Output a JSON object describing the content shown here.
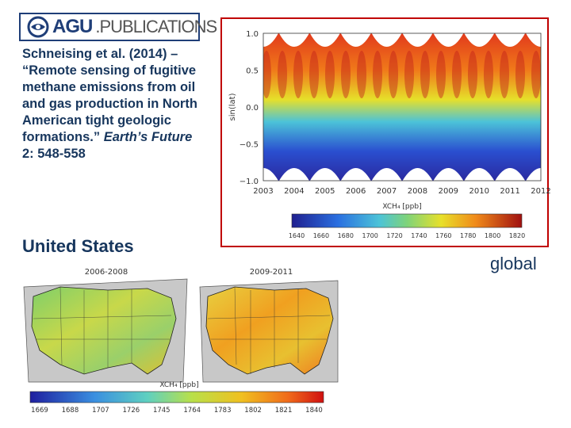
{
  "logo": {
    "agu": "AGU",
    "publications": ".PUBLICATIONS",
    "icon": "agu-globe-icon"
  },
  "citation": {
    "main": "Schneising et al. (2014) – “Remote sensing of fugitive methane emissions from oil and gas production in North American tight geologic formations.”",
    "journal": "Earth’s Future",
    "volume": "2: 548-558"
  },
  "labels": {
    "us": "United States",
    "global": "global"
  },
  "global_figure": {
    "ylabel": "sin(lat)",
    "xlabel": "XCH₄ [ppb]",
    "y_ticks": [
      "1.0",
      "0.5",
      "0.0",
      "−0.5",
      "−1.0"
    ],
    "x_ticks": [
      "2003",
      "2004",
      "2005",
      "2006",
      "2007",
      "2008",
      "2009",
      "2010",
      "2011",
      "2012"
    ],
    "colorbar_ticks": [
      "1640",
      "1660",
      "1680",
      "1700",
      "1720",
      "1740",
      "1760",
      "1780",
      "1800",
      "1820"
    ]
  },
  "us_figure": {
    "panel_left_title": "2006-2008",
    "panel_right_title": "2009-2011",
    "colorbar_label": "XCH₄ [ppb]",
    "colorbar_ticks": [
      "1669",
      "1688",
      "1707",
      "1726",
      "1745",
      "1764",
      "1783",
      "1802",
      "1821",
      "1840"
    ]
  },
  "colors": {
    "title_blue": "#17365d",
    "frame_red": "#c00000",
    "agu_blue": "#1f3e78"
  }
}
